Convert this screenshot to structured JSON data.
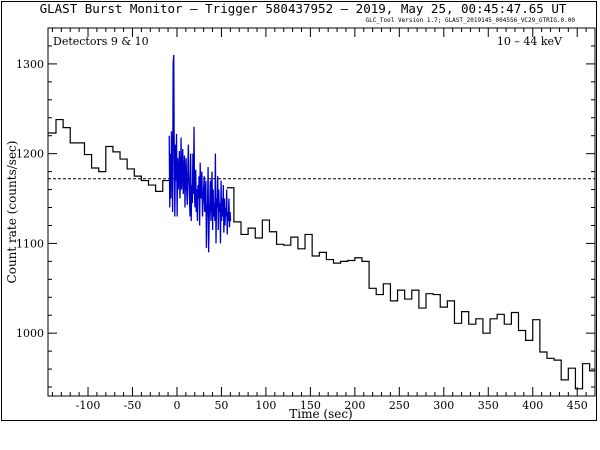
{
  "chart_data": {
    "type": "line",
    "title": "GLAST Burst Monitor  –  Trigger 580437952  –  2019, May 25, 00:45:47.65 UT",
    "subtitle": "GLC_Tool Version 1.7; GLAST_2019145_004556_VC29_GTRIG.0.00",
    "annotations": {
      "left": "Detectors 9 & 10",
      "right": "10 – 44 keV"
    },
    "xlabel": "Time (sec)",
    "ylabel": "Count rate (counts/sec)",
    "xlim": [
      -145,
      470
    ],
    "ylim": [
      930,
      1340
    ],
    "x_ticks": [
      -100,
      -50,
      0,
      50,
      100,
      150,
      200,
      250,
      300,
      350,
      400,
      450
    ],
    "y_ticks": [
      1000,
      1100,
      1200,
      1300
    ],
    "grid": false,
    "background_level": 1172,
    "series": [
      {
        "color": "#000000",
        "style": "step",
        "x_edges": [
          -145,
          -136,
          -128,
          -120,
          -112,
          -104,
          -96,
          -88,
          -80,
          -72,
          -64,
          -56,
          -48,
          -40,
          -32,
          -24,
          -16,
          -8,
          56,
          64,
          72,
          80,
          88,
          96,
          104,
          112,
          120,
          128,
          136,
          144,
          152,
          160,
          168,
          176,
          184,
          192,
          200,
          208,
          216,
          224,
          232,
          240,
          248,
          256,
          264,
          272,
          280,
          288,
          296,
          304,
          312,
          320,
          328,
          336,
          344,
          352,
          360,
          368,
          376,
          384,
          392,
          400,
          408,
          416,
          424,
          432,
          440,
          448,
          456,
          464,
          470
        ],
        "values": [
          1223,
          1238,
          1229,
          1212,
          1212,
          1199,
          1184,
          1180,
          1208,
          1202,
          1194,
          1183,
          1175,
          1170,
          1165,
          1158,
          1170,
          1162,
          1124,
          1110,
          1117,
          1106,
          1126,
          1113,
          1099,
          1098,
          1107,
          1094,
          1110,
          1086,
          1090,
          1082,
          1078,
          1080,
          1081,
          1084,
          1080,
          1050,
          1043,
          1055,
          1036,
          1048,
          1038,
          1048,
          1028,
          1044,
          1043,
          1029,
          1036,
          1011,
          1024,
          1010,
          1016,
          1000,
          1016,
          1021,
          1010,
          1023,
          1003,
          992,
          1015,
          979,
          972,
          970,
          948,
          961,
          938,
          966,
          958,
          931,
          944
        ]
      },
      {
        "color": "#0000cc",
        "style": "line",
        "x": [
          -8.7,
          -8.1,
          -7.4,
          -6.8,
          -6.2,
          -5.5,
          -4.9,
          -4.3,
          -3.6,
          -3.0,
          -2.4,
          -1.7,
          -1.1,
          -0.5,
          0.2,
          0.8,
          1.4,
          2.1,
          2.7,
          3.3,
          4.0,
          4.6,
          5.2,
          5.9,
          6.5,
          7.1,
          7.8,
          8.4,
          9.0,
          9.7,
          10.3,
          10.9,
          11.6,
          12.2,
          12.8,
          13.5,
          14.1,
          14.7,
          15.4,
          16.0,
          16.6,
          17.3,
          17.9,
          18.5,
          19.2,
          19.8,
          20.4,
          21.1,
          21.7,
          22.3,
          23.0,
          23.6,
          24.2,
          24.9,
          25.5,
          26.1,
          26.8,
          27.4,
          28.0,
          28.7,
          29.3,
          29.9,
          30.6,
          31.2,
          31.8,
          32.5,
          33.1,
          33.7,
          34.4,
          35.0,
          35.6,
          36.3,
          36.9,
          37.5,
          38.2,
          38.8,
          39.4,
          40.1,
          40.7,
          41.3,
          42.0,
          42.6,
          43.2,
          43.9,
          44.5,
          45.1,
          45.8,
          46.4,
          47.0,
          47.7,
          48.3,
          48.9,
          49.6,
          50.2,
          50.8,
          51.5,
          52.1,
          52.7,
          53.4,
          54.0,
          54.6,
          55.3,
          55.9,
          56.5,
          57.2,
          57.8,
          58.4,
          59.1,
          59.7,
          60.3
        ],
        "values": [
          1220,
          1140,
          1200,
          1150,
          1225,
          1195,
          1135,
          1300,
          1310,
          1180,
          1130,
          1210,
          1170,
          1222,
          1130,
          1195,
          1160,
          1180,
          1203,
          1150,
          1170,
          1218,
          1160,
          1185,
          1205,
          1155,
          1175,
          1198,
          1140,
          1180,
          1195,
          1160,
          1143,
          1180,
          1210,
          1170,
          1150,
          1130,
          1200,
          1125,
          1165,
          1145,
          1200,
          1155,
          1230,
          1150,
          1140,
          1182,
          1135,
          1160,
          1125,
          1165,
          1150,
          1175,
          1120,
          1190,
          1150,
          1165,
          1180,
          1130,
          1145,
          1160,
          1175,
          1135,
          1150,
          1170,
          1095,
          1130,
          1145,
          1185,
          1090,
          1130,
          1145,
          1170,
          1125,
          1160,
          1180,
          1115,
          1160,
          1130,
          1145,
          1125,
          1200,
          1100,
          1150,
          1140,
          1175,
          1115,
          1160,
          1135,
          1145,
          1100,
          1170,
          1125,
          1150,
          1130,
          1165,
          1112,
          1150,
          1120,
          1140,
          1130,
          1160,
          1110,
          1135,
          1125,
          1150,
          1118,
          1135,
          1125
        ]
      }
    ]
  }
}
